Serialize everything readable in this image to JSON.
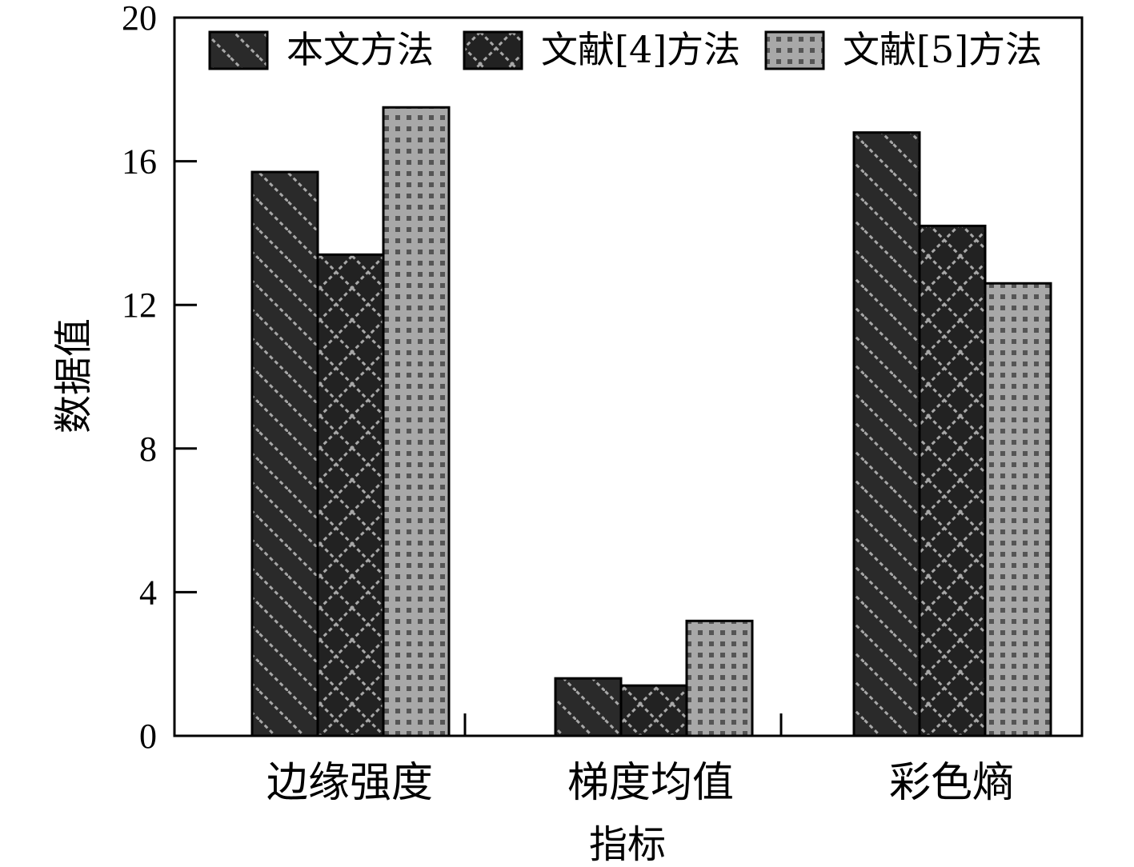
{
  "chart_data": {
    "type": "bar",
    "title": "",
    "xlabel": "指标",
    "ylabel": "数据值",
    "categories": [
      "边缘强度",
      "梯度均值",
      "彩色熵"
    ],
    "series": [
      {
        "name": "本文方法",
        "values": [
          15.7,
          1.6,
          16.8
        ],
        "pattern": "diagonal",
        "fill": "#2a2a2a",
        "pattern_color": "#a8a8a8"
      },
      {
        "name": "文献[4]方法",
        "values": [
          13.4,
          1.4,
          14.2
        ],
        "pattern": "crosshatch",
        "fill": "#222222",
        "pattern_color": "#a8a8a8"
      },
      {
        "name": "文献[5]方法",
        "values": [
          17.5,
          3.2,
          12.6
        ],
        "pattern": "dots",
        "fill": "#a8a8a8",
        "pattern_color": "#555555"
      }
    ],
    "ylim": [
      0,
      20
    ],
    "yticks": [
      0,
      4,
      8,
      12,
      16,
      20
    ],
    "grid": false,
    "legend": "top"
  }
}
